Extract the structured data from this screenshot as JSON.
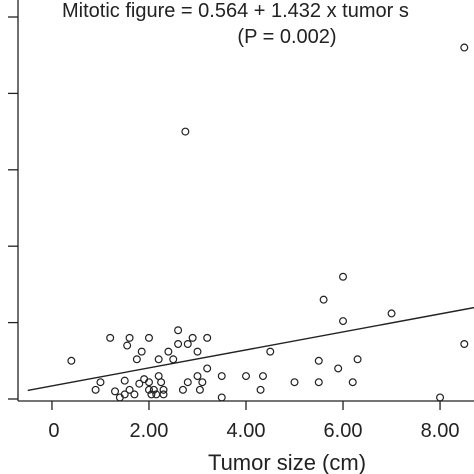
{
  "chart_data": {
    "type": "scatter",
    "title": "Mitotic figure = 0.564 + 1.432 x tumor s",
    "subtitle": "(P = 0.002)",
    "xlabel": "Tumor size (cm)",
    "ylabel": "",
    "xlim": [
      -0.7,
      8.7
    ],
    "ylim": [
      0,
      26
    ],
    "x_ticks": [
      {
        "value": 2,
        "label": "2.00"
      },
      {
        "value": 4,
        "label": "4.00"
      },
      {
        "value": 6,
        "label": "6.00"
      },
      {
        "value": 8,
        "label": "8.00"
      }
    ],
    "y_ticks": [
      0,
      5,
      10,
      15,
      20,
      25
    ],
    "regression": {
      "intercept": 0.564,
      "slope": 1.432
    },
    "grid": false,
    "colors": {
      "axis": "#222222",
      "marker": "#222222",
      "background": "#ffffff"
    },
    "points": [
      [
        0.4,
        2.5
      ],
      [
        0.9,
        0.6
      ],
      [
        1.0,
        1.1
      ],
      [
        1.2,
        4.0
      ],
      [
        1.3,
        0.5
      ],
      [
        1.4,
        0.1
      ],
      [
        1.5,
        0.3
      ],
      [
        1.5,
        1.2
      ],
      [
        1.55,
        3.5
      ],
      [
        1.6,
        4.0
      ],
      [
        1.6,
        0.6
      ],
      [
        1.7,
        0.3
      ],
      [
        1.75,
        2.6
      ],
      [
        1.8,
        1.0
      ],
      [
        1.85,
        3.1
      ],
      [
        1.9,
        1.3
      ],
      [
        2.0,
        4.0
      ],
      [
        2.0,
        1.1
      ],
      [
        2.0,
        0.6
      ],
      [
        2.05,
        0.3
      ],
      [
        2.1,
        0.6
      ],
      [
        2.15,
        0.3
      ],
      [
        2.2,
        2.6
      ],
      [
        2.2,
        1.5
      ],
      [
        2.25,
        1.1
      ],
      [
        2.3,
        0.6
      ],
      [
        2.3,
        0.3
      ],
      [
        2.4,
        3.1
      ],
      [
        2.5,
        2.6
      ],
      [
        2.6,
        4.5
      ],
      [
        2.6,
        3.6
      ],
      [
        2.7,
        0.6
      ],
      [
        2.75,
        17.5
      ],
      [
        2.8,
        3.6
      ],
      [
        2.8,
        1.1
      ],
      [
        2.9,
        4.0
      ],
      [
        3.0,
        3.1
      ],
      [
        3.0,
        1.5
      ],
      [
        3.05,
        0.6
      ],
      [
        3.1,
        1.1
      ],
      [
        3.2,
        4.0
      ],
      [
        3.2,
        2.0
      ],
      [
        3.5,
        1.5
      ],
      [
        3.5,
        0.1
      ],
      [
        4.0,
        1.5
      ],
      [
        4.3,
        0.6
      ],
      [
        4.35,
        1.5
      ],
      [
        4.5,
        3.1
      ],
      [
        5.0,
        1.1
      ],
      [
        5.5,
        1.1
      ],
      [
        5.5,
        2.5
      ],
      [
        5.6,
        6.5
      ],
      [
        5.9,
        2.0
      ],
      [
        6.0,
        5.1
      ],
      [
        6.0,
        8.0
      ],
      [
        6.2,
        1.1
      ],
      [
        6.3,
        2.6
      ],
      [
        7.0,
        5.6
      ],
      [
        8.0,
        0.1
      ],
      [
        8.5,
        3.6
      ],
      [
        8.5,
        23.0
      ]
    ]
  }
}
